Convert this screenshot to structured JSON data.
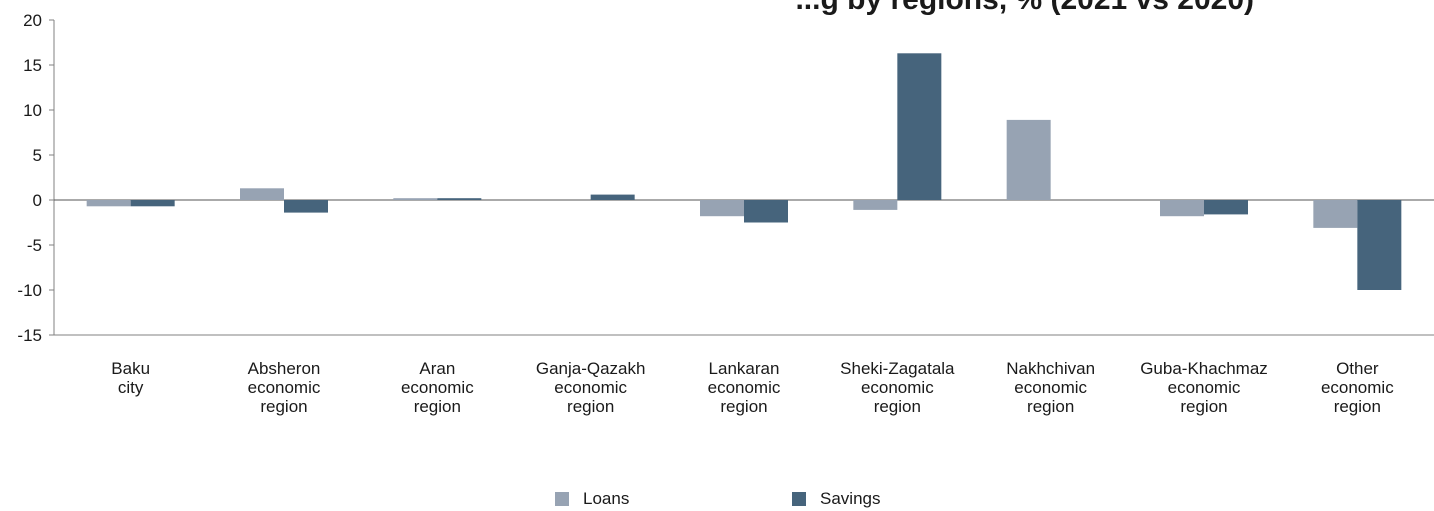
{
  "chart_data": {
    "type": "bar",
    "title": "...g by regions, % (2021 vs 2020)",
    "categories": [
      [
        "Baku",
        "city"
      ],
      [
        "Absheron",
        "economic",
        "region"
      ],
      [
        "Aran",
        "economic",
        "region"
      ],
      [
        "Ganja-Qazakh",
        "economic",
        "region"
      ],
      [
        "Lankaran",
        "economic",
        "region"
      ],
      [
        "Sheki-Zagatala",
        "economic",
        "region"
      ],
      [
        "Nakhchivan",
        "economic",
        "region"
      ],
      [
        "Guba-Khachmaz",
        "economic",
        "region"
      ],
      [
        "Other",
        "economic",
        "region"
      ]
    ],
    "series": [
      {
        "name": "Loans",
        "color": "#97a3b3",
        "values": [
          -0.7,
          1.3,
          0.2,
          0.0,
          -1.8,
          -1.1,
          8.9,
          -1.8,
          -3.1
        ]
      },
      {
        "name": "Savings",
        "color": "#46647c",
        "values": [
          -0.7,
          -1.4,
          0.2,
          0.6,
          -2.5,
          16.3,
          0.0,
          -1.6,
          -10.0
        ]
      }
    ],
    "ylim": [
      -15,
      20
    ],
    "yticks": [
      "20",
      "15",
      "10",
      "5",
      "0",
      "-5",
      "-10",
      "-15"
    ],
    "xlabel": "",
    "ylabel": "",
    "legend_position": "bottom",
    "grid": false
  }
}
